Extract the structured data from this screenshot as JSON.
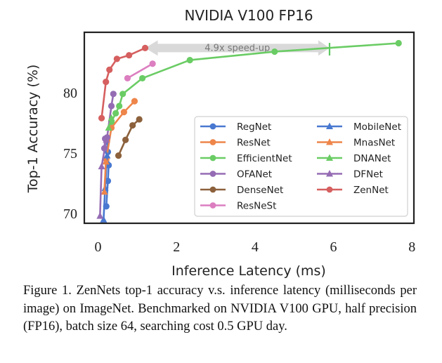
{
  "chart_data": {
    "type": "line",
    "title": "NVIDIA V100 FP16",
    "xlabel": "Inference Latency (ms)",
    "ylabel": "Top-1 Accuracy (%)",
    "xlim": [
      -0.35,
      8.05
    ],
    "ylim": [
      69.2,
      85.0
    ],
    "xticks": [
      0,
      2,
      4,
      6,
      8
    ],
    "yticks": [
      70,
      75,
      80
    ],
    "grid": false,
    "legend_position": "lower-right",
    "annotation": {
      "text": "4.9x speed-up",
      "from_x": 5.9,
      "to_x": 1.2,
      "y": 83.7
    },
    "highlight_marker": {
      "x": 5.9,
      "y": 83.6,
      "color": "#5ec962"
    },
    "series": [
      {
        "name": "RegNet",
        "marker": "circle",
        "color": "#4878d0",
        "x": [
          0.21,
          0.25,
          0.27,
          0.25,
          0.23
        ],
        "y": [
          70.6,
          72.7,
          74.0,
          75.1,
          76.1
        ]
      },
      {
        "name": "ResNet",
        "marker": "circle",
        "color": "#ee854a",
        "x": [
          0.21,
          0.34,
          0.66,
          0.93
        ],
        "y": [
          74.5,
          77.1,
          78.4,
          79.3
        ]
      },
      {
        "name": "EfficientNet",
        "marker": "circle",
        "color": "#6acc64",
        "x": [
          0.34,
          0.45,
          0.54,
          0.63,
          1.13,
          2.34,
          4.5,
          7.66
        ],
        "y": [
          77.6,
          78.3,
          78.9,
          79.9,
          81.2,
          82.7,
          83.4,
          84.1
        ]
      },
      {
        "name": "OFANet",
        "marker": "circle",
        "color": "#956cb4",
        "x": [
          0.16,
          0.18,
          0.23,
          0.34,
          0.39
        ],
        "y": [
          75.4,
          76.2,
          76.3,
          78.9,
          79.9
        ]
      },
      {
        "name": "DenseNet",
        "marker": "circle",
        "color": "#8c613c",
        "x": [
          0.52,
          0.7,
          0.88,
          1.05
        ],
        "y": [
          74.8,
          76.1,
          77.3,
          77.8
        ]
      },
      {
        "name": "ResNeSt",
        "marker": "circle",
        "color": "#dc7ec0",
        "x": [
          0.75,
          1.39
        ],
        "y": [
          81.2,
          82.4
        ]
      },
      {
        "name": "MobileNet",
        "marker": "triangle",
        "color": "#4878d0",
        "x": [
          0.14,
          0.18,
          0.23
        ],
        "y": [
          69.5,
          72.1,
          74.8
        ]
      },
      {
        "name": "MnasNet",
        "marker": "triangle",
        "color": "#ee854a",
        "x": [
          0.16,
          0.2
        ],
        "y": [
          71.8,
          74.3
        ]
      },
      {
        "name": "DNANet",
        "marker": "triangle",
        "color": "#6acc64",
        "x": [
          0.27,
          0.34
        ],
        "y": [
          77.1,
          77.9
        ]
      },
      {
        "name": "DFNet",
        "marker": "triangle",
        "color": "#956cb4",
        "x": [
          0.05,
          0.09,
          0.21
        ],
        "y": [
          69.8,
          73.9,
          76.1
        ]
      },
      {
        "name": "ZenNet",
        "marker": "circle",
        "color": "#d65f5f",
        "x": [
          0.09,
          0.2,
          0.29,
          0.48,
          0.79,
          1.2
        ],
        "y": [
          77.9,
          80.9,
          81.9,
          82.8,
          83.1,
          83.7
        ]
      }
    ],
    "legend_order": [
      [
        "RegNet",
        "ResNet",
        "EfficientNet",
        "OFANet",
        "DenseNet",
        "ResNeSt"
      ],
      [
        "MobileNet",
        "MnasNet",
        "DNANet",
        "DFNet",
        "ZenNet"
      ]
    ]
  },
  "caption": "Figure 1. ZenNets top-1 accuracy v.s. inference latency (milliseconds per image) on ImageNet.  Benchmarked on NVIDIA V100 GPU, half precision (FP16), batch size 64, searching cost 0.5 GPU day."
}
